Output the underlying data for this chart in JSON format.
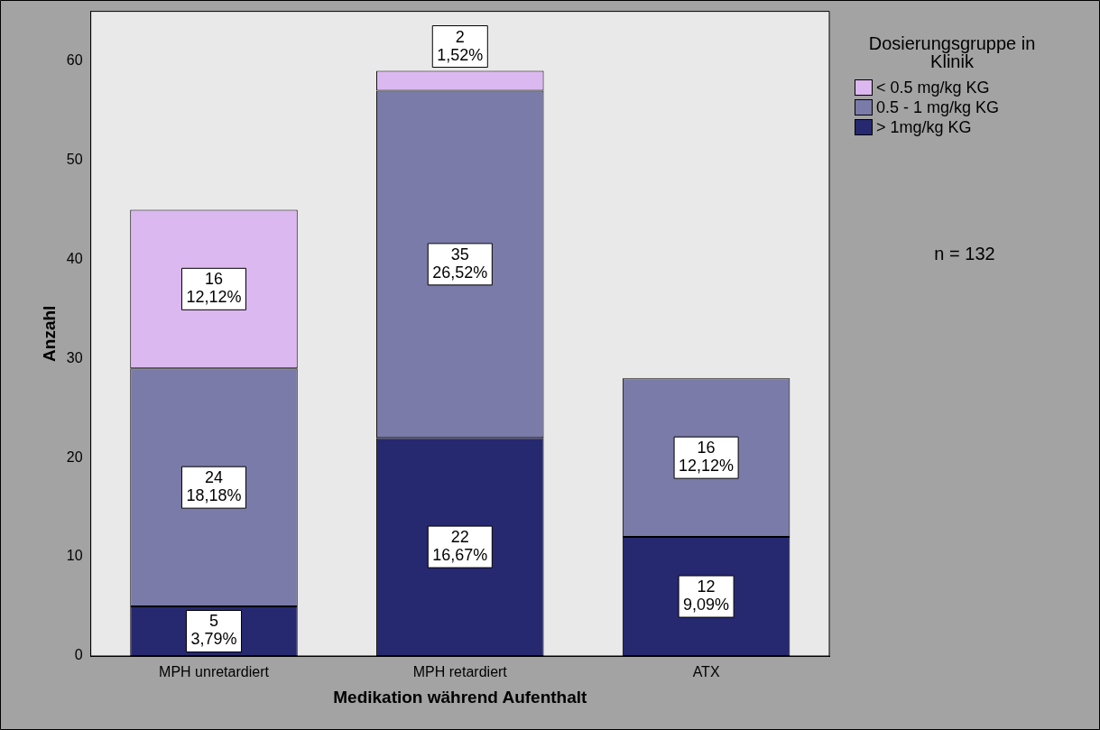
{
  "chart_data": {
    "type": "bar",
    "stacked": true,
    "xlabel": "Medikation während Aufenthalt",
    "ylabel": "Anzahl",
    "legend_title": "Dosierungsgruppe in Klinik",
    "legend": "top right",
    "grid": false,
    "categories": [
      "MPH unretardiert",
      "MPH retardiert",
      "ATX"
    ],
    "ylim": [
      0,
      65
    ],
    "yticks": [
      0,
      10,
      20,
      30,
      40,
      50,
      60
    ],
    "series": [
      {
        "name": "> 1mg/kg KG",
        "color": "#262970",
        "values": [
          5,
          22,
          12
        ],
        "value_labels": [
          "5\n3,79%",
          "22\n16,67%",
          "12\n9,09%"
        ]
      },
      {
        "name": "0.5 - 1 mg/kg KG",
        "color": "#7a7ba8",
        "values": [
          24,
          35,
          16
        ],
        "value_labels": [
          "24\n18,18%",
          "35\n26,52%",
          "16\n12,12%"
        ]
      },
      {
        "name": "< 0.5 mg/kg KG",
        "color": "#dbb8f0",
        "values": [
          16,
          2,
          null
        ],
        "value_labels": [
          "16\n12,12%",
          "2\n1,52%",
          null
        ]
      }
    ],
    "annotations": [
      "n = 132"
    ]
  }
}
